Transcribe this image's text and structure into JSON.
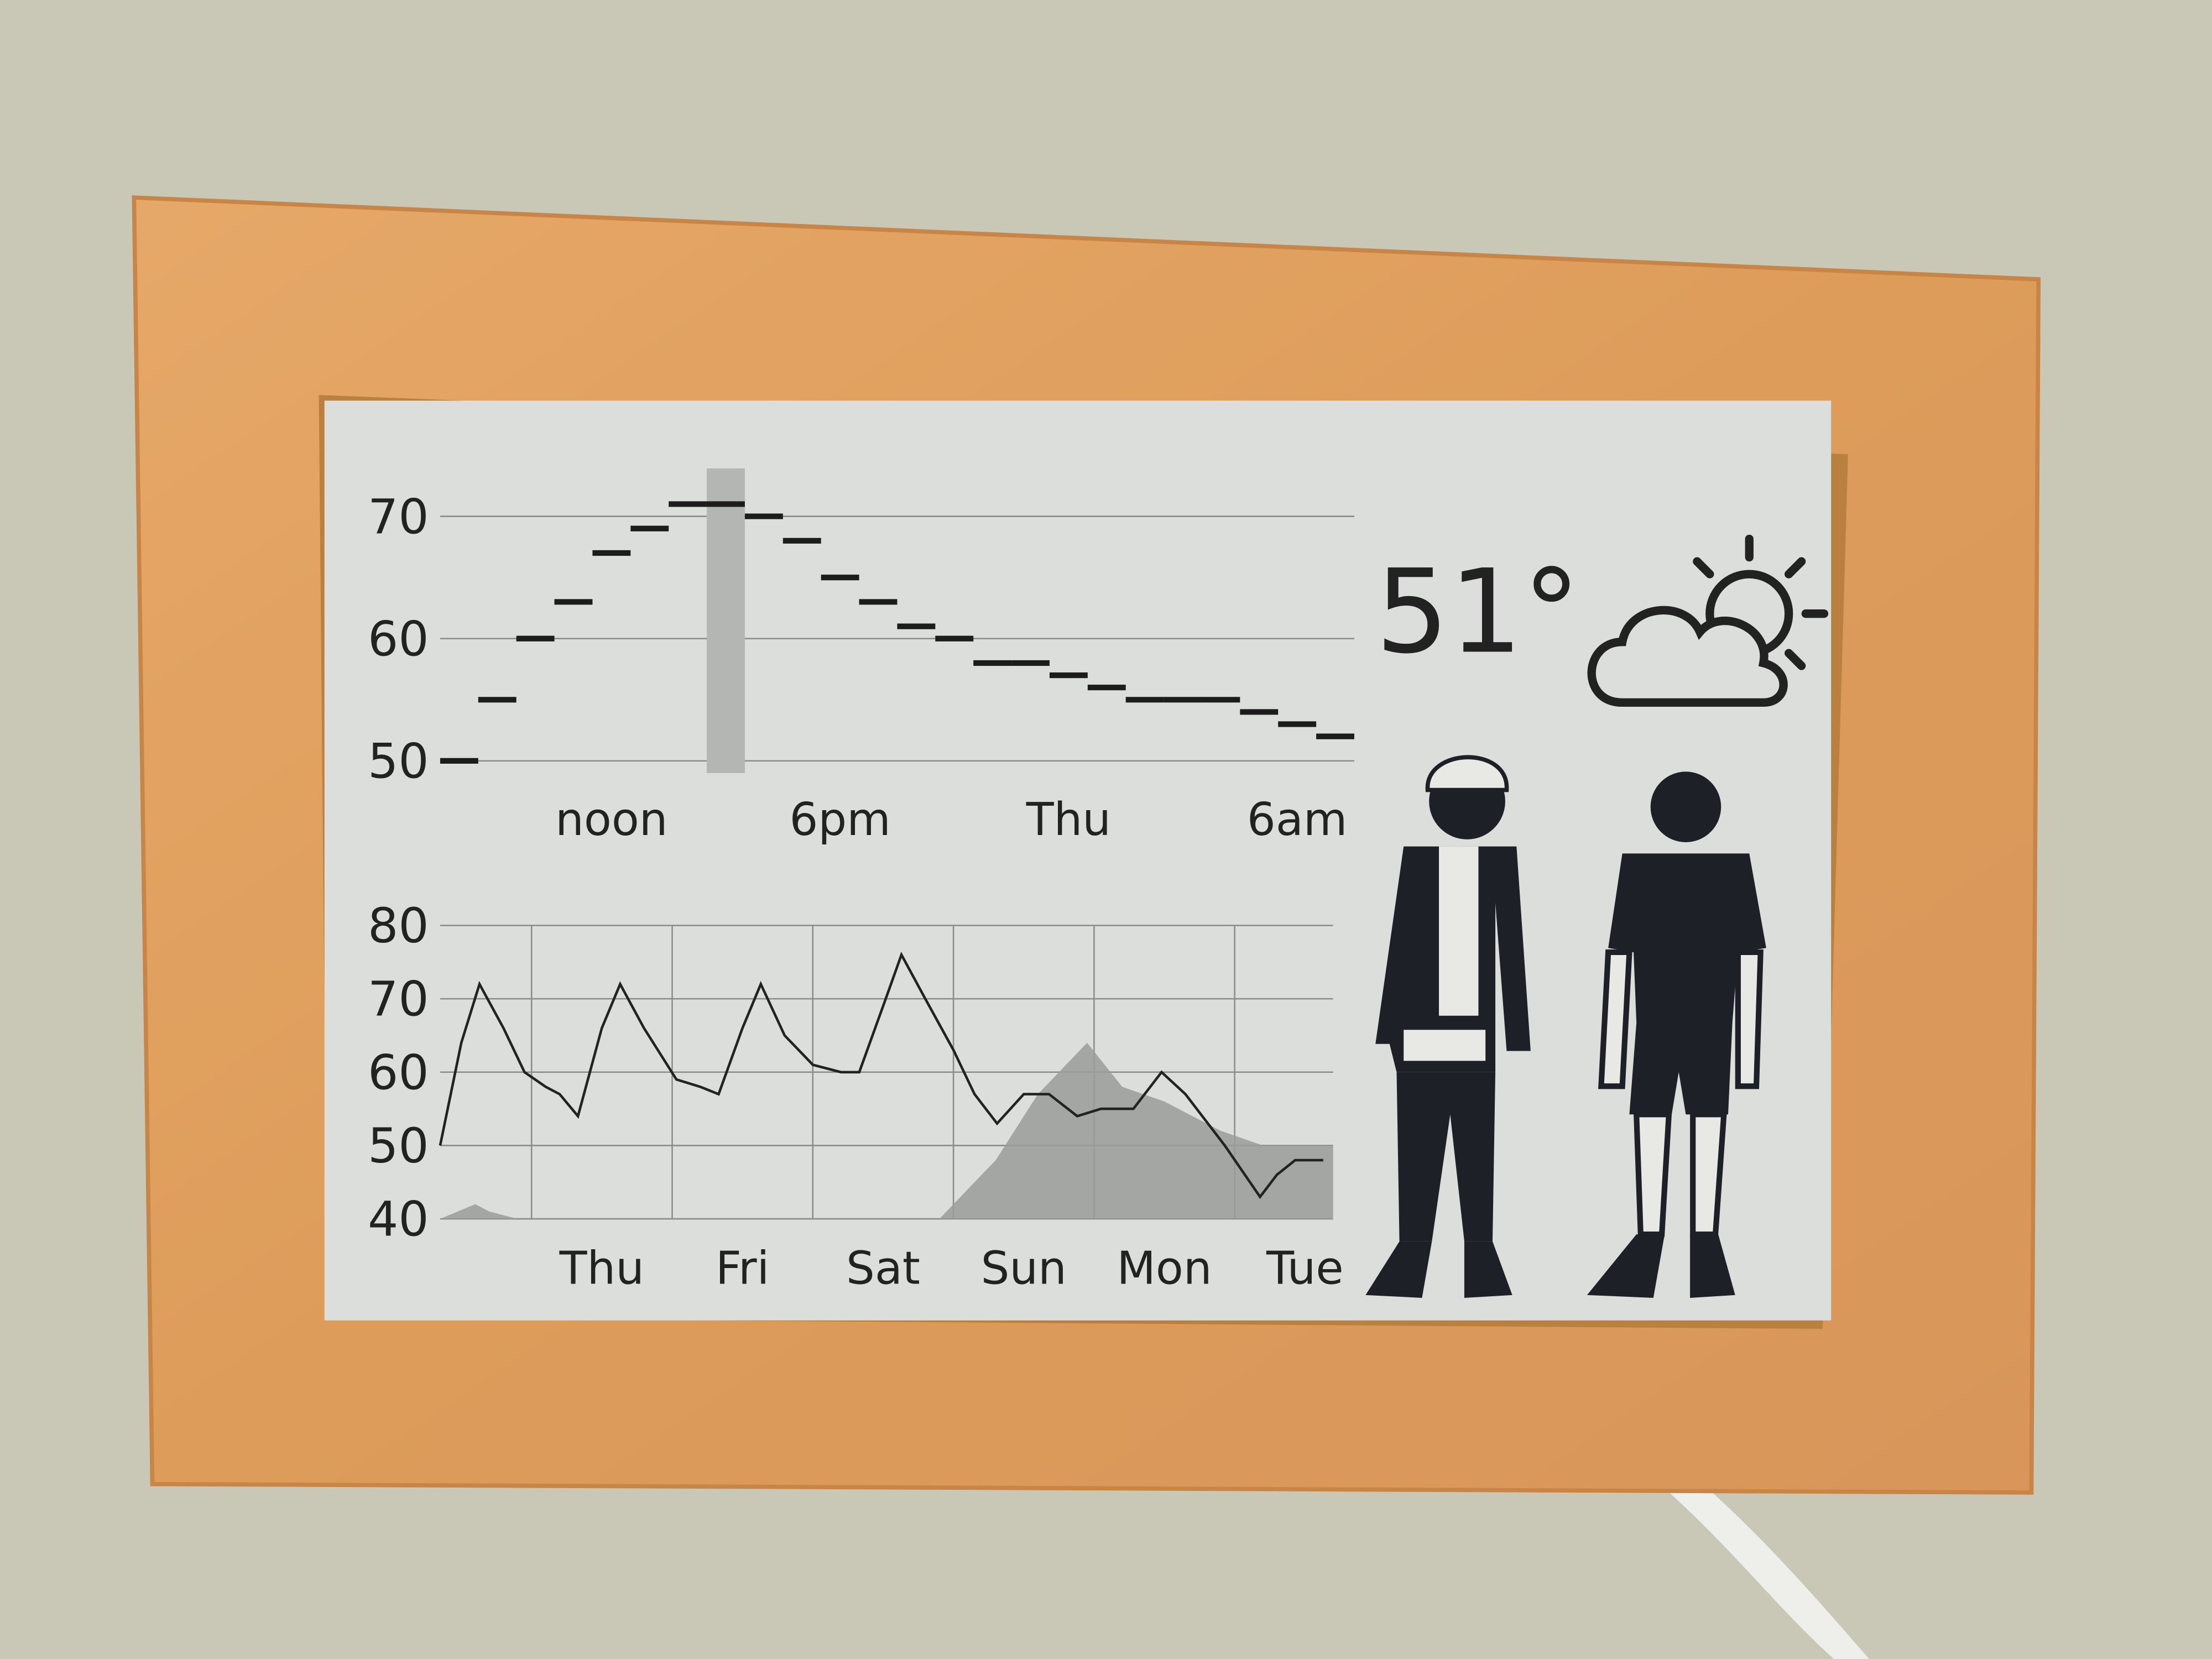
{
  "chart_data": [
    {
      "type": "step",
      "categories": [
        null,
        null,
        null,
        null,
        "noon",
        null,
        null,
        null,
        null,
        null,
        "6pm",
        null,
        null,
        null,
        null,
        null,
        "Thu",
        null,
        null,
        null,
        null,
        null,
        "6am",
        null
      ],
      "values": [
        50,
        55,
        60,
        63,
        67,
        69,
        71,
        71,
        70,
        68,
        65,
        63,
        61,
        60,
        58,
        58,
        57,
        56,
        55,
        55,
        55,
        54,
        53,
        52
      ],
      "color": "#1c1c1c",
      "ylim": [
        49,
        73
      ],
      "yticks": [
        50,
        60,
        70
      ],
      "grid": true,
      "highlight": 7
    },
    {
      "type": "line",
      "categories": [
        "Thu",
        "Fri",
        "Sat",
        "Sun",
        "Mon",
        "Tue"
      ],
      "xlim": [
        -0.65,
        5.7
      ],
      "xticks": [
        0,
        1,
        2,
        3,
        4,
        5
      ],
      "ylim": [
        40,
        80
      ],
      "yticks": [
        40,
        50,
        60,
        70,
        80
      ],
      "grid": true,
      "series": [
        {
          "type": "area",
          "color": "#9a9c99",
          "x": [
            -0.65,
            -0.4,
            -0.3,
            -0.1,
            2.9,
            3.3,
            3.6,
            3.95,
            4.2,
            4.5,
            4.9,
            5.2,
            5.7
          ],
          "values": [
            40,
            42,
            41,
            40,
            40,
            48,
            57,
            64,
            58,
            56,
            52,
            50,
            50
          ]
        },
        {
          "type": "line",
          "color": "#222222",
          "x": [
            -0.65,
            -0.5,
            -0.37,
            -0.2,
            -0.05,
            0.1,
            0.2,
            0.33,
            0.5,
            0.63,
            0.8,
            1.03,
            1.2,
            1.33,
            1.5,
            1.63,
            1.8,
            2.0,
            2.2,
            2.33,
            2.5,
            2.63,
            2.8,
            3.0,
            3.15,
            3.31,
            3.5,
            3.68,
            3.88,
            4.05,
            4.28,
            4.48,
            4.65,
            4.93,
            5.18,
            5.3,
            5.43,
            5.63
          ],
          "values": [
            50,
            64,
            72,
            66,
            60,
            58,
            57,
            54,
            66,
            72,
            66,
            59,
            58,
            57,
            66,
            72,
            65,
            61,
            60,
            60,
            69,
            76,
            70,
            63,
            57,
            53,
            57,
            57,
            54,
            55,
            55,
            60,
            57,
            50,
            43,
            46,
            48,
            48
          ]
        }
      ]
    }
  ],
  "current": {
    "temperature": "51°"
  }
}
